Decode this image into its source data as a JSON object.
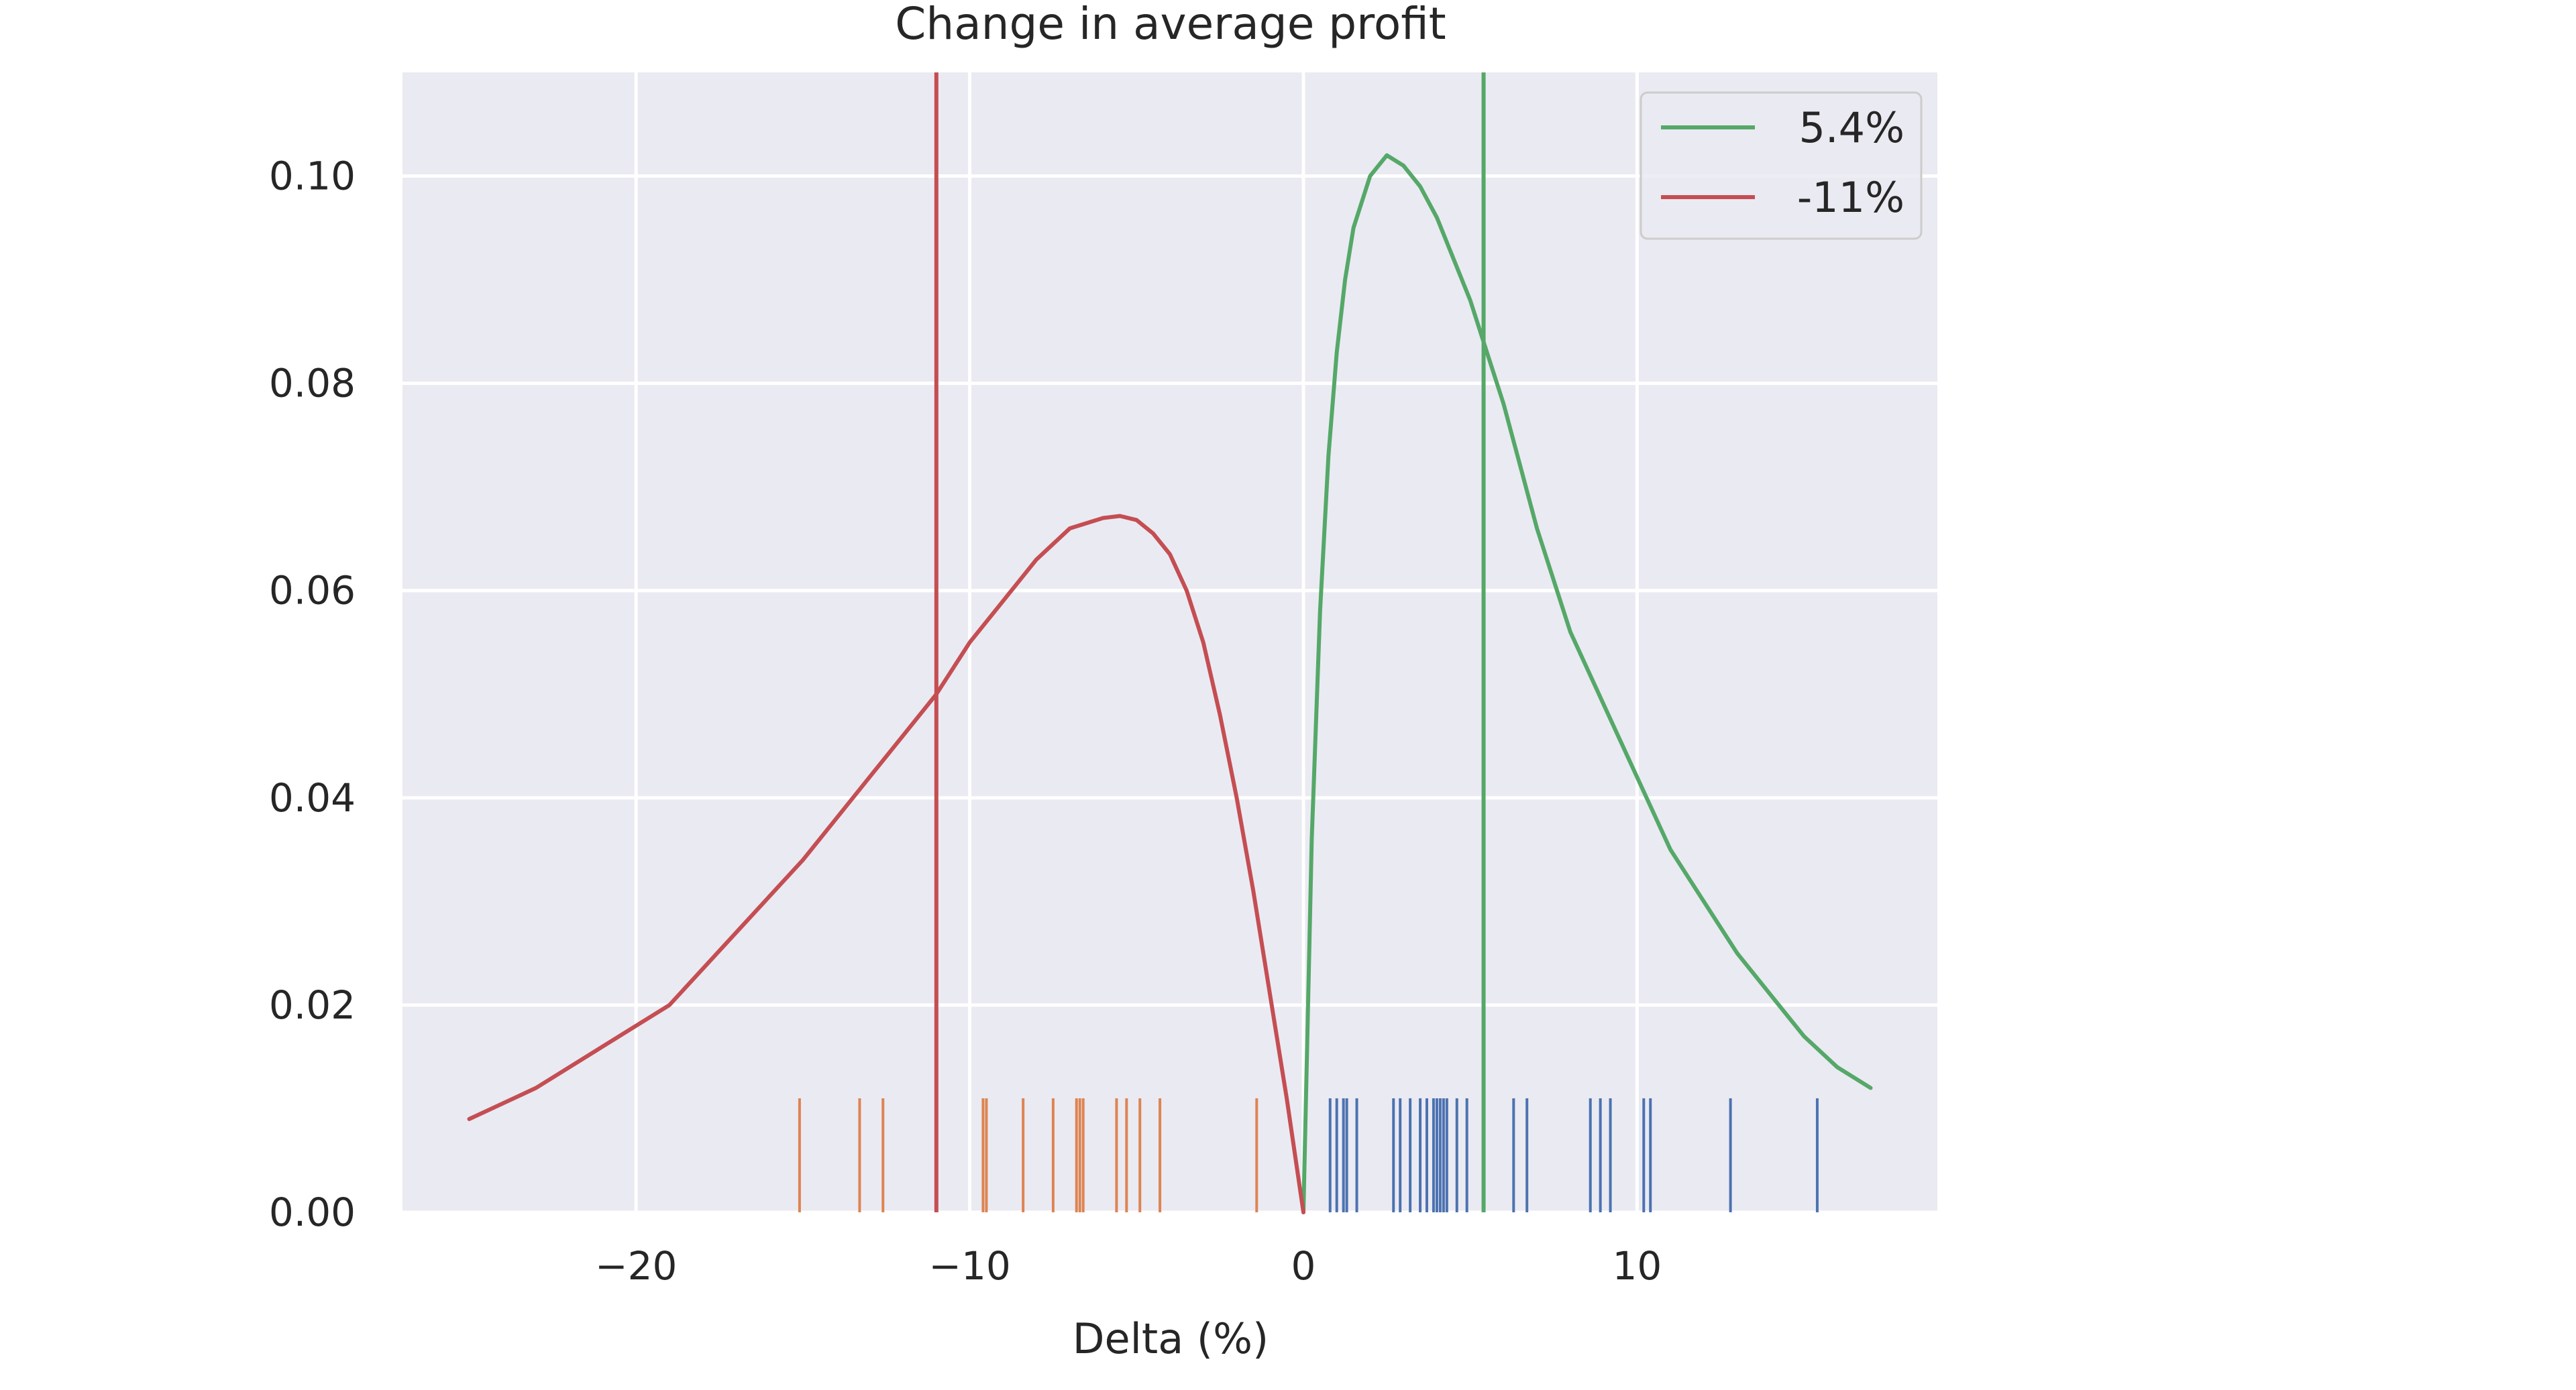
{
  "chart_data": {
    "type": "line",
    "title": "Change in average profit",
    "xlabel": "Delta (%)",
    "ylabel": "",
    "xlim": [
      -27,
      19
    ],
    "ylim": [
      0,
      0.11
    ],
    "xticks": [
      -20,
      -10,
      0,
      10
    ],
    "xtick_labels": [
      "−20",
      "−10",
      "0",
      "10"
    ],
    "yticks": [
      0.0,
      0.02,
      0.04,
      0.06,
      0.08,
      0.1
    ],
    "ytick_labels": [
      "0.00",
      "0.02",
      "0.04",
      "0.06",
      "0.08",
      "0.10"
    ],
    "grid": true,
    "legend_position": "top-right",
    "colors": {
      "background": "#eaeaf2",
      "grid": "#ffffff",
      "green": "#55a868",
      "red": "#c44e52",
      "blue": "#4c72b0",
      "orange": "#dd8452"
    },
    "series": [
      {
        "name": "5.4%",
        "color": "#55a868",
        "mean_line": 5.4,
        "x": [
          0.0,
          0.25,
          0.5,
          0.75,
          1.0,
          1.25,
          1.5,
          2.0,
          2.5,
          3.0,
          3.5,
          4.0,
          4.5,
          5.0,
          5.5,
          6.0,
          6.5,
          7.0,
          8.0,
          9.0,
          10.0,
          11.0,
          12.0,
          13.0,
          14.0,
          15.0,
          16.0,
          17.0
        ],
        "y": [
          0.0,
          0.036,
          0.058,
          0.073,
          0.083,
          0.09,
          0.095,
          0.1,
          0.102,
          0.101,
          0.099,
          0.096,
          0.092,
          0.088,
          0.083,
          0.078,
          0.072,
          0.066,
          0.056,
          0.049,
          0.042,
          0.035,
          0.03,
          0.025,
          0.021,
          0.017,
          0.014,
          0.012
        ]
      },
      {
        "name": "-11%",
        "color": "#c44e52",
        "mean_line": -11,
        "x": [
          -25.0,
          -23.0,
          -21.0,
          -19.0,
          -17.0,
          -15.0,
          -13.0,
          -12.0,
          -11.0,
          -10.0,
          -9.0,
          -8.0,
          -7.0,
          -6.0,
          -5.5,
          -5.0,
          -4.5,
          -4.0,
          -3.5,
          -3.0,
          -2.5,
          -2.0,
          -1.5,
          -1.0,
          -0.5,
          0.0
        ],
        "y": [
          0.009,
          0.012,
          0.016,
          0.02,
          0.027,
          0.034,
          0.042,
          0.046,
          0.05,
          0.055,
          0.059,
          0.063,
          0.066,
          0.067,
          0.0672,
          0.0668,
          0.0655,
          0.0635,
          0.06,
          0.055,
          0.048,
          0.04,
          0.031,
          0.021,
          0.011,
          0.0
        ]
      }
    ],
    "rug": [
      {
        "color": "#dd8452",
        "height": 0.011,
        "x": [
          -15.1,
          -13.3,
          -12.6,
          -9.6,
          -9.5,
          -8.4,
          -7.5,
          -6.8,
          -6.7,
          -6.6,
          -5.6,
          -5.3,
          -4.9,
          -4.3,
          -1.4
        ]
      },
      {
        "color": "#4c72b0",
        "height": 0.011,
        "x": [
          0.8,
          1.0,
          1.2,
          1.3,
          1.6,
          2.7,
          2.9,
          3.2,
          3.5,
          3.7,
          3.9,
          4.0,
          4.1,
          4.2,
          4.3,
          4.6,
          4.9,
          6.3,
          6.7,
          8.6,
          8.9,
          9.2,
          10.2,
          10.4,
          12.8,
          15.4
        ]
      }
    ]
  }
}
